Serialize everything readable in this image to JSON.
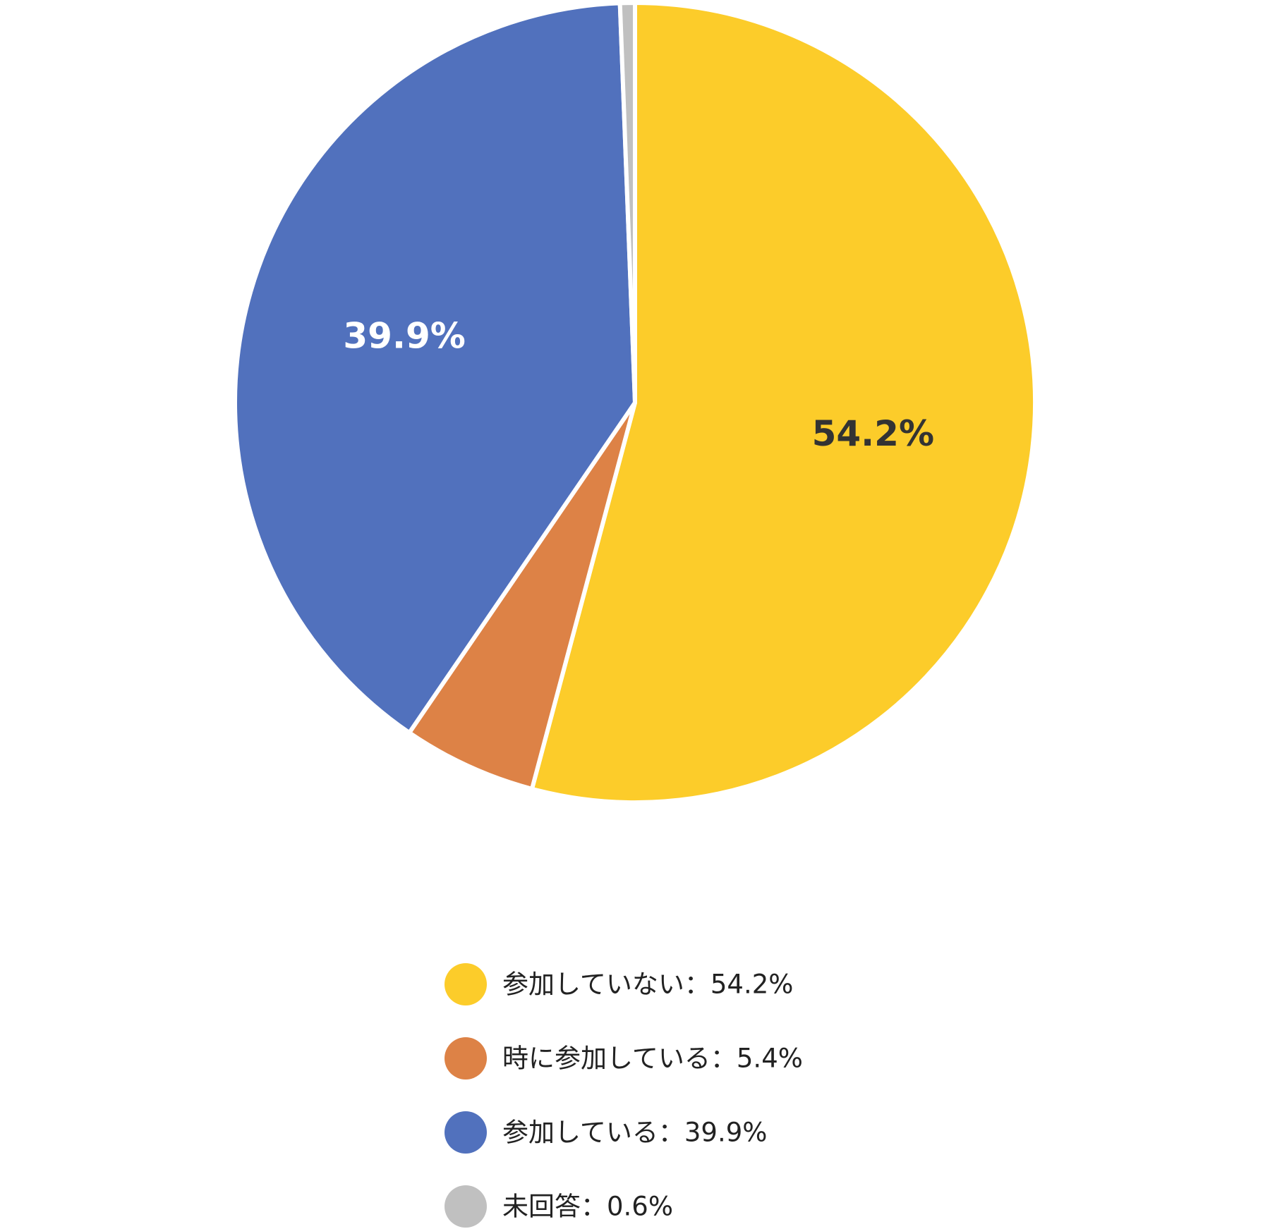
{
  "chart_data": {
    "type": "pie",
    "title": "",
    "start_angle_deg": 0,
    "direction": "clockwise",
    "slices": [
      {
        "name": "参加していない",
        "value": 54.2,
        "color": "#FCCC2A",
        "label": "54.2%",
        "label_color": "#333333",
        "legend_text": "参加していない：54.2%"
      },
      {
        "name": "時に参加している",
        "value": 5.4,
        "color": "#DD8246",
        "label": "",
        "label_color": "#ffffff",
        "legend_text": "時に参加している：5.4%"
      },
      {
        "name": "参加している",
        "value": 39.9,
        "color": "#5171BD",
        "label": "39.9%",
        "label_color": "#ffffff",
        "legend_text": "参加している：39.9%"
      },
      {
        "name": "未回答",
        "value": 0.6,
        "color": "#C0C0C0",
        "label": "",
        "label_color": "#333333",
        "legend_text": "未回答：0.6%"
      }
    ],
    "legend_position": "bottom-center"
  }
}
